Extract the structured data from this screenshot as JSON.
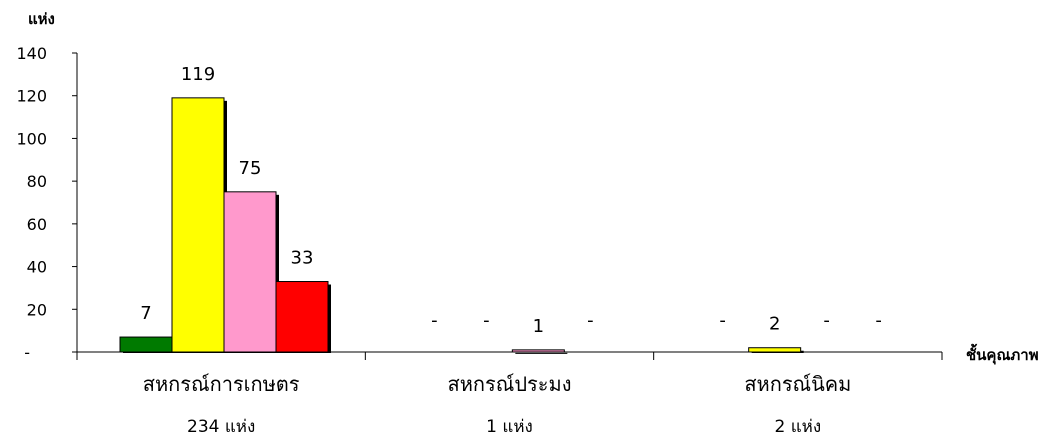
{
  "chart_data": {
    "type": "bar",
    "ylabel": "แห่ง",
    "xlabel": "ชั้นคุณภาพ",
    "ylim": [
      0,
      140
    ],
    "yticks": [
      {
        "value": 0,
        "label": "-"
      },
      {
        "value": 20,
        "label": "20"
      },
      {
        "value": 40,
        "label": "40"
      },
      {
        "value": 60,
        "label": "60"
      },
      {
        "value": 80,
        "label": "80"
      },
      {
        "value": 100,
        "label": "100"
      },
      {
        "value": 120,
        "label": "120"
      },
      {
        "value": 140,
        "label": "140"
      }
    ],
    "colors": [
      "#007a00",
      "#ffff00",
      "#ff99cc",
      "#ff0000"
    ],
    "categories": [
      {
        "name": "สหกรณ์การเกษตร",
        "sub": "234  แห่ง",
        "values": [
          7,
          119,
          75,
          33
        ],
        "labels": [
          "7",
          "119",
          "75",
          "33"
        ]
      },
      {
        "name": "สหกรณ์ประมง",
        "sub": "1  แห่ง",
        "values": [
          0,
          0,
          1,
          0
        ],
        "labels": [
          "-",
          "-",
          "1",
          "-"
        ]
      },
      {
        "name": "สหกรณ์นิคม",
        "sub": "2  แห่ง",
        "values": [
          0,
          2,
          0,
          0
        ],
        "labels": [
          "-",
          "2",
          "-",
          "-"
        ]
      }
    ]
  }
}
